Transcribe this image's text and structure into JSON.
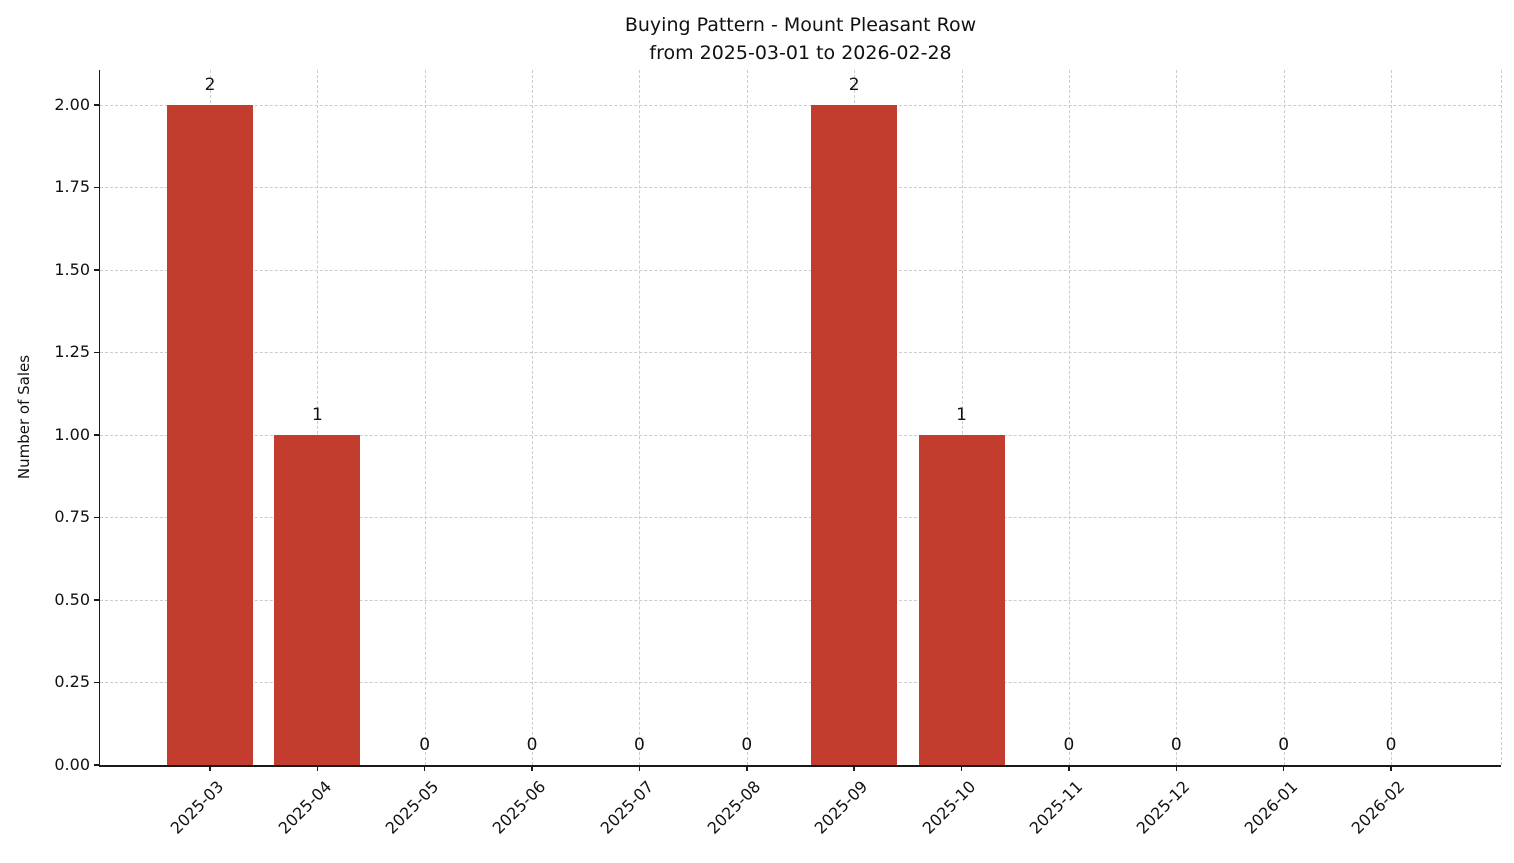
{
  "chart": {
    "title_line1": "Buying Pattern - Mount Pleasant Row",
    "title_line2": "from 2025-03-01 to 2026-02-28"
  },
  "chart_data": {
    "type": "bar",
    "title": "Buying Pattern - Mount Pleasant Row\nfrom 2025-03-01 to 2026-02-28",
    "title_lines": [
      "Buying Pattern - Mount Pleasant Row",
      "from 2025-03-01 to 2026-02-28"
    ],
    "categories": [
      "2025-03",
      "2025-04",
      "2025-05",
      "2025-06",
      "2025-07",
      "2025-08",
      "2025-09",
      "2025-10",
      "2025-11",
      "2025-12",
      "2026-01",
      "2026-02"
    ],
    "values": [
      2,
      1,
      0,
      0,
      0,
      0,
      2,
      1,
      0,
      0,
      0,
      0
    ],
    "xlabel": "",
    "ylabel": "Number of Sales",
    "ylim": [
      0,
      2.106
    ],
    "yticks": [
      0.0,
      0.25,
      0.5,
      0.75,
      1.0,
      1.25,
      1.5,
      1.75,
      2.0
    ],
    "ytick_labels": [
      "0.00",
      "0.25",
      "0.50",
      "0.75",
      "1.00",
      "1.25",
      "1.50",
      "1.75",
      "2.00"
    ],
    "value_labels_shown": true,
    "grid": true,
    "grid_style": "dashed",
    "legend": "none",
    "bar_color": "#c33d2e",
    "grid_color": "#cccccc",
    "axis_color": "#1a1a1a",
    "text_color": "#111111"
  }
}
